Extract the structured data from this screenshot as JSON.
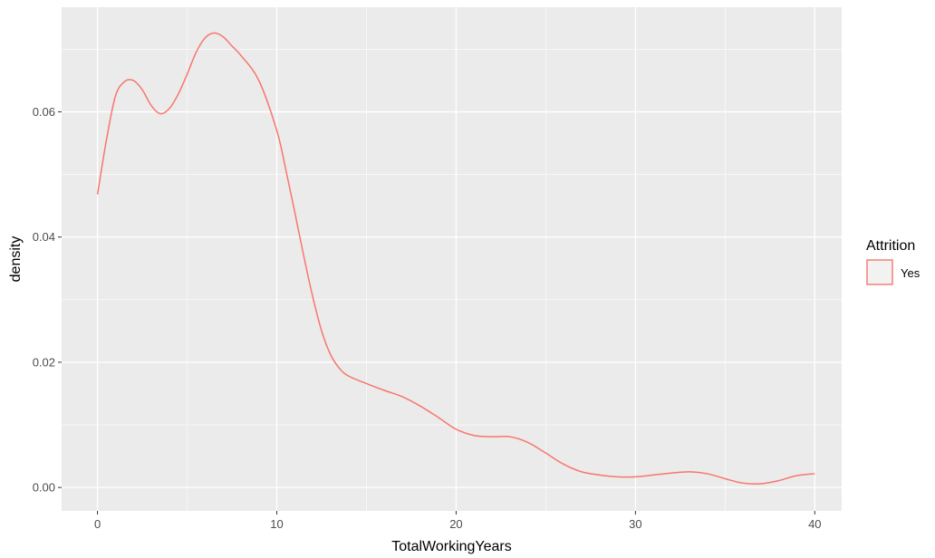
{
  "chart_data": {
    "type": "line",
    "title": "",
    "xlabel": "TotalWorkingYears",
    "ylabel": "density",
    "xlim": [
      -2,
      41.5
    ],
    "ylim": [
      -0.00374,
      0.0767
    ],
    "x_ticks": [
      0,
      10,
      20,
      30,
      40
    ],
    "x_tick_labels": [
      "0",
      "10",
      "20",
      "30",
      "40"
    ],
    "y_ticks": [
      0.0,
      0.02,
      0.04,
      0.06
    ],
    "y_tick_labels": [
      "0.00",
      "0.02",
      "0.04",
      "0.06"
    ],
    "grid": true,
    "legend": {
      "title": "Attrition",
      "position": "right",
      "entries": [
        "Yes"
      ]
    },
    "colors": {
      "series": "#f8766d",
      "panel": "#ebebeb",
      "grid": "#ffffff"
    },
    "series": [
      {
        "name": "Yes",
        "x": [
          0,
          0.5,
          1,
          1.5,
          2,
          2.5,
          3,
          3.5,
          4,
          4.5,
          5,
          5.5,
          6,
          6.5,
          7,
          7.5,
          8,
          9,
          10,
          10.5,
          11,
          11.5,
          12,
          12.5,
          13,
          13.5,
          14,
          15,
          16,
          17,
          18,
          19,
          20,
          21,
          22,
          23,
          24,
          25,
          26,
          27,
          28,
          29,
          30,
          31,
          32,
          33,
          34,
          35,
          36,
          37,
          38,
          39,
          40
        ],
        "y": [
          0.0468,
          0.0555,
          0.0625,
          0.0648,
          0.065,
          0.0635,
          0.061,
          0.0597,
          0.0605,
          0.0628,
          0.066,
          0.0695,
          0.0718,
          0.0726,
          0.072,
          0.0705,
          0.069,
          0.065,
          0.057,
          0.0508,
          0.044,
          0.037,
          0.0305,
          0.025,
          0.0212,
          0.019,
          0.0178,
          0.0166,
          0.0155,
          0.0145,
          0.013,
          0.0112,
          0.0093,
          0.0083,
          0.0081,
          0.0081,
          0.0072,
          0.0055,
          0.0037,
          0.0025,
          0.002,
          0.0017,
          0.0017,
          0.002,
          0.0023,
          0.0025,
          0.0022,
          0.0014,
          0.0007,
          0.0006,
          0.0011,
          0.0019,
          0.0022
        ]
      }
    ]
  }
}
